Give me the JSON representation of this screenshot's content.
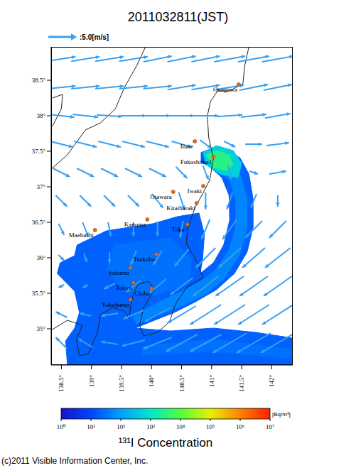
{
  "chart_data": {
    "type": "map",
    "title": "2011032811(JST)",
    "xlim": [
      138.33,
      142.35
    ],
    "ylim": [
      34.49,
      38.97
    ],
    "xticks": [
      {
        "value": 138.5,
        "label": "138.5°"
      },
      {
        "value": 139,
        "label": "139°"
      },
      {
        "value": 139.5,
        "label": "139.5°"
      },
      {
        "value": 140,
        "label": "140°"
      },
      {
        "value": 140.5,
        "label": "140.5°"
      },
      {
        "value": 141,
        "label": "141°"
      },
      {
        "value": 141.5,
        "label": "141.5°"
      },
      {
        "value": 142,
        "label": "142°"
      }
    ],
    "yticks": [
      {
        "value": 35,
        "label": "35°"
      },
      {
        "value": 35.5,
        "label": "35.5°"
      },
      {
        "value": 36,
        "label": "36°"
      },
      {
        "value": 36.5,
        "label": "36.5°"
      },
      {
        "value": 37,
        "label": "37°"
      },
      {
        "value": 37.5,
        "label": "37.5°"
      },
      {
        "value": 38,
        "label": "38°"
      },
      {
        "value": 38.5,
        "label": "38.5°"
      }
    ],
    "wind": {
      "label": ":5.0[m/s]",
      "reference": 5,
      "color": "#3aa0ef",
      "lon": [
        138.5,
        138.9,
        139.3,
        139.7,
        140.1,
        140.5,
        140.9,
        141.3,
        141.7,
        142.1
      ],
      "lat": [
        38.8,
        38.4,
        38.0,
        37.6,
        37.2,
        36.8,
        36.4,
        36.0,
        35.6,
        35.2,
        34.8
      ],
      "u": [
        [
          5,
          5,
          5,
          5,
          5,
          5,
          5,
          5.5,
          5.5,
          5.5
        ],
        [
          5,
          5,
          5,
          5,
          5,
          5,
          5,
          5,
          5,
          5
        ],
        [
          4.5,
          4.5,
          4.5,
          4.5,
          4.5,
          4.5,
          4.5,
          4.5,
          4.5,
          4.5
        ],
        [
          4,
          4,
          4,
          4,
          4,
          3.5,
          2,
          2,
          3,
          4
        ],
        [
          3,
          3,
          3,
          3,
          3,
          2,
          1,
          0.5,
          1.5,
          3
        ],
        [
          2,
          2,
          2,
          2,
          2,
          1,
          0,
          -1,
          -1,
          0
        ],
        [
          1,
          1,
          0.5,
          0,
          0,
          -0.5,
          -1.5,
          -2.5,
          -3,
          -3
        ],
        [
          1,
          0.5,
          0,
          -1,
          -1.5,
          -2.5,
          -3.5,
          -4,
          -4,
          -4.5
        ],
        [
          -1,
          -1,
          -2,
          -2.5,
          -3,
          -4,
          -4.5,
          -5,
          -5,
          -5
        ],
        [
          -2,
          -2,
          -3,
          -3.5,
          -4.5,
          -5,
          -5.5,
          -5.5,
          -5.5,
          -5.5
        ],
        [
          -2,
          -2.5,
          -3,
          -4,
          -5,
          -5.5,
          -5.5,
          -6,
          -6,
          -6
        ]
      ],
      "v": [
        [
          0.8,
          0.8,
          0.8,
          0.8,
          1,
          1,
          1,
          1,
          1,
          1
        ],
        [
          0.5,
          0.5,
          0.5,
          0.5,
          0.5,
          0.8,
          0.8,
          0.8,
          1,
          1
        ],
        [
          -0.5,
          -0.5,
          -0.3,
          0,
          0,
          0,
          0,
          0.3,
          0.5,
          0.8
        ],
        [
          -1,
          -1,
          -1,
          -1,
          -1,
          -1,
          -1.5,
          -1,
          0,
          0.5
        ],
        [
          -1.5,
          -1.5,
          -1.5,
          -1.5,
          -1.5,
          -2,
          -2.5,
          -2.5,
          -0.5,
          0.5
        ],
        [
          -2,
          -2,
          -2,
          -2,
          -2.5,
          -3,
          -3,
          -3,
          -2.5,
          -2
        ],
        [
          -2,
          -2.5,
          -2.5,
          -2.5,
          -2.5,
          -3,
          -3.5,
          -3.5,
          -3,
          -3
        ],
        [
          -1,
          -1.5,
          -2,
          -2.5,
          -2.5,
          -3,
          -3.5,
          -3.5,
          -3.5,
          -3.5
        ],
        [
          -0.5,
          -0.5,
          -1,
          -2,
          -2.5,
          -3,
          -3.5,
          -3.5,
          -3.5,
          -3.5
        ],
        [
          1,
          0.5,
          -0.5,
          -1.5,
          -2.5,
          -3,
          -3.5,
          -3.5,
          -3.5,
          -3.5
        ],
        [
          2,
          1.5,
          0.5,
          -1,
          -2,
          -3,
          -3,
          -3.5,
          -3.5,
          -3.5
        ]
      ]
    },
    "places": [
      {
        "name": "Onagawa",
        "lon": 141.45,
        "lat": 38.44
      },
      {
        "name": "Iitate",
        "lon": 140.72,
        "lat": 37.64
      },
      {
        "name": "Fukushima1",
        "lon": 141.03,
        "lat": 37.42
      },
      {
        "name": "Iwaki",
        "lon": 140.86,
        "lat": 37.01
      },
      {
        "name": "Otawara",
        "lon": 140.36,
        "lat": 36.93
      },
      {
        "name": "Kitaibaraki",
        "lon": 140.75,
        "lat": 36.77
      },
      {
        "name": "Kanuma",
        "lon": 139.93,
        "lat": 36.54
      },
      {
        "name": "Tokai",
        "lon": 140.6,
        "lat": 36.47
      },
      {
        "name": "Maebashi",
        "lon": 139.06,
        "lat": 36.39
      },
      {
        "name": "Tsukuba",
        "lon": 140.08,
        "lat": 36.05
      },
      {
        "name": "Saitama",
        "lon": 139.65,
        "lat": 35.86
      },
      {
        "name": "Tokyo",
        "lon": 139.7,
        "lat": 35.65
      },
      {
        "name": "Chiba",
        "lon": 140.0,
        "lat": 35.57
      },
      {
        "name": "Yokohama",
        "lon": 139.65,
        "lat": 35.41
      }
    ],
    "coastlines": [
      [
        [
          141.62,
          38.97
        ],
        [
          141.55,
          38.7
        ],
        [
          141.52,
          38.45
        ],
        [
          141.3,
          38.35
        ],
        [
          141.1,
          38.35
        ],
        [
          140.98,
          38.2
        ],
        [
          140.93,
          38.0
        ],
        [
          140.95,
          37.7
        ],
        [
          141.03,
          37.4
        ],
        [
          140.97,
          37.1
        ],
        [
          140.85,
          36.9
        ],
        [
          140.72,
          36.7
        ],
        [
          140.6,
          36.4
        ],
        [
          140.58,
          36.2
        ],
        [
          140.75,
          35.95
        ],
        [
          140.86,
          35.72
        ],
        [
          140.6,
          35.6
        ],
        [
          140.4,
          35.35
        ],
        [
          140.3,
          35.1
        ],
        [
          140.1,
          34.95
        ],
        [
          139.87,
          34.9
        ],
        [
          139.8,
          35.05
        ],
        [
          139.87,
          35.3
        ],
        [
          140.05,
          35.55
        ],
        [
          139.95,
          35.67
        ],
        [
          139.78,
          35.63
        ],
        [
          139.7,
          35.5
        ],
        [
          139.65,
          35.3
        ],
        [
          139.63,
          35.15
        ],
        [
          139.55,
          35.25
        ],
        [
          139.35,
          35.3
        ],
        [
          139.15,
          35.2
        ],
        [
          139.1,
          34.95
        ],
        [
          138.95,
          34.65
        ],
        [
          138.8,
          34.62
        ],
        [
          138.75,
          34.85
        ],
        [
          138.85,
          35.05
        ],
        [
          138.6,
          35.12
        ],
        [
          138.33,
          34.98
        ]
      ],
      [
        [
          139.9,
          38.97
        ],
        [
          139.75,
          38.7
        ],
        [
          139.55,
          38.4
        ],
        [
          139.4,
          38.1
        ],
        [
          139.15,
          37.9
        ],
        [
          138.9,
          37.8
        ],
        [
          138.6,
          37.45
        ],
        [
          138.33,
          37.25
        ]
      ],
      [
        [
          138.35,
          38.25
        ],
        [
          138.52,
          38.3
        ],
        [
          138.5,
          38.1
        ],
        [
          138.35,
          37.85
        ]
      ]
    ],
    "concentration": {
      "title": "¹³¹I Concentration",
      "unit": "[Bq/m³]",
      "log": true,
      "range": [
        1,
        10000000
      ],
      "ticks": [
        {
          "value": 1,
          "label": "10⁰"
        },
        {
          "value": 10,
          "label": "10¹"
        },
        {
          "value": 100,
          "label": "10²"
        },
        {
          "value": 1000,
          "label": "10³"
        },
        {
          "value": 10000,
          "label": "10⁴"
        },
        {
          "value": 100000,
          "label": "10⁵"
        },
        {
          "value": 1000000,
          "label": "10⁶"
        },
        {
          "value": 10000000,
          "label": "10⁷"
        }
      ],
      "areas": [
        {
          "level": 20,
          "points": [
            [
              140.82,
              37.48
            ],
            [
              141.03,
              37.55
            ],
            [
              141.26,
              37.51
            ],
            [
              141.47,
              37.41
            ],
            [
              141.62,
              37.18
            ],
            [
              141.69,
              36.83
            ],
            [
              141.69,
              36.43
            ],
            [
              141.59,
              36.08
            ],
            [
              141.38,
              35.78
            ],
            [
              141.08,
              35.55
            ],
            [
              140.73,
              35.38
            ],
            [
              140.38,
              35.23
            ],
            [
              140.02,
              35.11
            ],
            [
              139.73,
              35.01
            ],
            [
              140.32,
              34.97
            ],
            [
              141.03,
              35.01
            ],
            [
              141.73,
              34.95
            ],
            [
              142.35,
              34.87
            ],
            [
              142.35,
              34.49
            ],
            [
              138.6,
              34.49
            ],
            [
              138.57,
              34.83
            ],
            [
              138.72,
              35.01
            ],
            [
              138.8,
              35.23
            ],
            [
              138.72,
              35.53
            ],
            [
              138.43,
              35.78
            ],
            [
              138.48,
              35.93
            ],
            [
              138.72,
              36.03
            ],
            [
              138.76,
              36.18
            ],
            [
              139.25,
              36.38
            ],
            [
              140.02,
              36.48
            ],
            [
              140.43,
              36.58
            ],
            [
              140.79,
              36.63
            ],
            [
              140.88,
              36.33
            ],
            [
              140.85,
              35.98
            ],
            [
              140.81,
              35.78
            ],
            [
              141.03,
              35.93
            ],
            [
              141.2,
              36.18
            ],
            [
              141.3,
              36.53
            ],
            [
              141.29,
              36.88
            ],
            [
              141.17,
              37.13
            ],
            [
              140.97,
              37.28
            ],
            [
              140.82,
              37.35
            ]
          ]
        },
        {
          "level": 30,
          "points": [
            [
              139.37,
              36.18
            ],
            [
              140.32,
              36.28
            ],
            [
              140.67,
              35.98
            ],
            [
              140.61,
              35.63
            ],
            [
              140.08,
              35.48
            ],
            [
              139.55,
              35.53
            ],
            [
              139.25,
              35.83
            ]
          ]
        },
        {
          "level": 30,
          "points": [
            [
              139.84,
              34.75
            ],
            [
              141.03,
              34.85
            ],
            [
              142.35,
              34.71
            ],
            [
              142.35,
              34.58
            ],
            [
              141.03,
              34.68
            ],
            [
              139.84,
              34.63
            ]
          ]
        },
        {
          "level": 50,
          "points": [
            [
              141.03,
              37.48
            ],
            [
              141.44,
              37.28
            ],
            [
              141.59,
              36.83
            ],
            [
              141.59,
              36.43
            ],
            [
              141.47,
              36.05
            ],
            [
              141.21,
              35.71
            ],
            [
              140.91,
              35.49
            ],
            [
              140.53,
              35.33
            ],
            [
              140.1,
              35.19
            ],
            [
              139.75,
              35.07
            ],
            [
              139.7,
              35.17
            ],
            [
              140.06,
              35.35
            ],
            [
              140.46,
              35.51
            ],
            [
              140.79,
              35.65
            ],
            [
              141.07,
              35.83
            ],
            [
              141.29,
              36.11
            ],
            [
              141.4,
              36.43
            ],
            [
              141.4,
              36.81
            ],
            [
              141.31,
              37.08
            ],
            [
              141.0,
              37.31
            ]
          ]
        },
        {
          "level": 500,
          "points": [
            [
              140.85,
              37.48
            ],
            [
              141.08,
              37.58
            ],
            [
              141.36,
              37.51
            ],
            [
              141.5,
              37.33
            ],
            [
              141.44,
              37.13
            ],
            [
              141.14,
              37.18
            ],
            [
              140.91,
              37.31
            ]
          ]
        },
        {
          "level": 3000,
          "points": [
            [
              140.91,
              37.45
            ],
            [
              141.08,
              37.51
            ],
            [
              141.29,
              37.45
            ],
            [
              141.36,
              37.31
            ],
            [
              141.24,
              37.23
            ],
            [
              141.03,
              37.27
            ]
          ]
        }
      ]
    },
    "credit": "(c)2011 Visible Information Center, Inc."
  }
}
